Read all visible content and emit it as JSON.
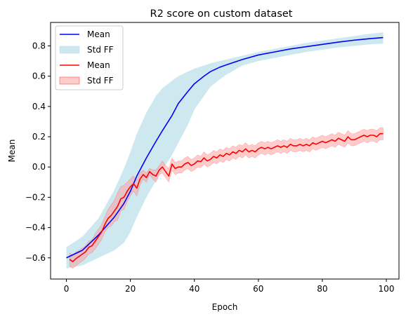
{
  "chart_data": {
    "type": "line",
    "title": "R2 score on custom dataset",
    "xlabel": "Epoch",
    "ylabel": "Mean",
    "xlim": [
      -4.95,
      103.95
    ],
    "ylim": [
      -0.74,
      0.955
    ],
    "xticks": [
      0,
      20,
      40,
      60,
      80,
      100
    ],
    "yticks": [
      -0.6,
      -0.4,
      -0.2,
      0.0,
      0.2,
      0.4,
      0.6,
      0.8
    ],
    "xtick_labels": [
      "0",
      "20",
      "40",
      "60",
      "80",
      "100"
    ],
    "ytick_labels": [
      "−0.6",
      "−0.4",
      "−0.2",
      "0.0",
      "0.2",
      "0.4",
      "0.6",
      "0.8"
    ],
    "grid": false,
    "legend_position": "top-left",
    "legend": [
      "Mean",
      "Std FF",
      "Mean",
      "Std FF"
    ],
    "series": [
      {
        "name": "Mean",
        "band_name": "Std FF",
        "color": "#0000ff",
        "band_color": "#add8e6",
        "x": [
          0,
          5,
          10,
          15,
          18,
          20,
          22,
          25,
          28,
          30,
          33,
          35,
          38,
          40,
          43,
          45,
          48,
          50,
          55,
          60,
          65,
          70,
          75,
          80,
          85,
          90,
          95,
          99
        ],
        "values": [
          -0.6,
          -0.55,
          -0.45,
          -0.33,
          -0.24,
          -0.16,
          -0.06,
          0.06,
          0.17,
          0.24,
          0.34,
          0.42,
          0.5,
          0.55,
          0.6,
          0.63,
          0.66,
          0.675,
          0.71,
          0.74,
          0.76,
          0.78,
          0.795,
          0.81,
          0.825,
          0.838,
          0.848,
          0.855
        ],
        "upper": [
          -0.53,
          -0.46,
          -0.34,
          -0.15,
          -0.01,
          0.1,
          0.22,
          0.36,
          0.47,
          0.52,
          0.57,
          0.6,
          0.63,
          0.65,
          0.67,
          0.685,
          0.7,
          0.71,
          0.735,
          0.76,
          0.78,
          0.8,
          0.82,
          0.835,
          0.85,
          0.865,
          0.88,
          0.89
        ],
        "lower": [
          -0.67,
          -0.65,
          -0.6,
          -0.55,
          -0.5,
          -0.43,
          -0.33,
          -0.2,
          -0.09,
          -0.02,
          0.08,
          0.16,
          0.28,
          0.38,
          0.47,
          0.53,
          0.58,
          0.61,
          0.67,
          0.7,
          0.72,
          0.74,
          0.76,
          0.775,
          0.79,
          0.8,
          0.81,
          0.815
        ]
      },
      {
        "name": "Mean",
        "band_name": "Std FF",
        "color": "#ff0000",
        "band_color": "#ff9a9a",
        "x": [
          1,
          2,
          3,
          4,
          5,
          6,
          7,
          8,
          9,
          10,
          11,
          12,
          13,
          14,
          15,
          16,
          17,
          18,
          19,
          20,
          21,
          22,
          23,
          24,
          25,
          26,
          27,
          28,
          29,
          30,
          31,
          32,
          33,
          34,
          35,
          36,
          37,
          38,
          39,
          40,
          41,
          42,
          43,
          44,
          45,
          46,
          47,
          48,
          49,
          50,
          51,
          52,
          53,
          54,
          55,
          56,
          57,
          58,
          59,
          60,
          61,
          62,
          63,
          64,
          65,
          66,
          67,
          68,
          69,
          70,
          71,
          72,
          73,
          74,
          75,
          76,
          77,
          78,
          79,
          80,
          81,
          82,
          83,
          84,
          85,
          86,
          87,
          88,
          89,
          90,
          91,
          92,
          93,
          94,
          95,
          96,
          97,
          98,
          99
        ],
        "values": [
          -0.61,
          -0.625,
          -0.605,
          -0.59,
          -0.575,
          -0.56,
          -0.53,
          -0.52,
          -0.49,
          -0.46,
          -0.43,
          -0.38,
          -0.34,
          -0.32,
          -0.29,
          -0.26,
          -0.21,
          -0.2,
          -0.16,
          -0.13,
          -0.11,
          -0.14,
          -0.08,
          -0.05,
          -0.07,
          -0.03,
          -0.05,
          -0.06,
          -0.02,
          0.0,
          -0.03,
          -0.06,
          0.02,
          -0.01,
          0.0,
          0.0,
          0.02,
          0.03,
          0.01,
          0.02,
          0.04,
          0.035,
          0.06,
          0.04,
          0.05,
          0.07,
          0.06,
          0.08,
          0.07,
          0.09,
          0.08,
          0.1,
          0.09,
          0.11,
          0.1,
          0.12,
          0.1,
          0.11,
          0.1,
          0.12,
          0.13,
          0.12,
          0.13,
          0.12,
          0.13,
          0.14,
          0.13,
          0.14,
          0.13,
          0.15,
          0.14,
          0.14,
          0.15,
          0.14,
          0.15,
          0.14,
          0.16,
          0.15,
          0.16,
          0.17,
          0.16,
          0.17,
          0.18,
          0.17,
          0.19,
          0.18,
          0.17,
          0.2,
          0.18,
          0.18,
          0.19,
          0.2,
          0.21,
          0.2,
          0.21,
          0.21,
          0.2,
          0.22,
          0.22
        ],
        "upper": [
          -0.57,
          -0.58,
          -0.56,
          -0.55,
          -0.535,
          -0.52,
          -0.49,
          -0.48,
          -0.44,
          -0.41,
          -0.38,
          -0.33,
          -0.28,
          -0.25,
          -0.22,
          -0.17,
          -0.13,
          -0.12,
          -0.1,
          -0.08,
          -0.06,
          -0.09,
          -0.04,
          -0.02,
          -0.04,
          -0.01,
          -0.02,
          -0.02,
          0.01,
          0.04,
          0.01,
          -0.01,
          0.06,
          0.03,
          0.04,
          0.04,
          0.06,
          0.07,
          0.05,
          0.06,
          0.08,
          0.07,
          0.1,
          0.08,
          0.09,
          0.11,
          0.1,
          0.12,
          0.11,
          0.13,
          0.12,
          0.14,
          0.13,
          0.15,
          0.14,
          0.16,
          0.14,
          0.15,
          0.14,
          0.16,
          0.17,
          0.16,
          0.17,
          0.16,
          0.17,
          0.18,
          0.17,
          0.18,
          0.17,
          0.19,
          0.18,
          0.18,
          0.19,
          0.18,
          0.19,
          0.18,
          0.2,
          0.19,
          0.2,
          0.21,
          0.2,
          0.21,
          0.22,
          0.21,
          0.23,
          0.22,
          0.21,
          0.24,
          0.22,
          0.22,
          0.23,
          0.24,
          0.25,
          0.24,
          0.25,
          0.25,
          0.24,
          0.26,
          0.26
        ],
        "lower": [
          -0.655,
          -0.67,
          -0.65,
          -0.635,
          -0.62,
          -0.6,
          -0.575,
          -0.565,
          -0.54,
          -0.51,
          -0.48,
          -0.43,
          -0.4,
          -0.39,
          -0.36,
          -0.35,
          -0.29,
          -0.28,
          -0.23,
          -0.19,
          -0.16,
          -0.19,
          -0.12,
          -0.08,
          -0.1,
          -0.05,
          -0.08,
          -0.1,
          -0.05,
          -0.04,
          -0.07,
          -0.1,
          -0.02,
          -0.05,
          -0.04,
          -0.04,
          -0.02,
          -0.01,
          -0.03,
          -0.02,
          0.0,
          -0.005,
          0.02,
          0.0,
          0.01,
          0.03,
          0.02,
          0.04,
          0.03,
          0.05,
          0.04,
          0.06,
          0.05,
          0.07,
          0.06,
          0.08,
          0.06,
          0.07,
          0.06,
          0.08,
          0.09,
          0.08,
          0.09,
          0.08,
          0.09,
          0.1,
          0.09,
          0.1,
          0.09,
          0.11,
          0.1,
          0.1,
          0.11,
          0.1,
          0.11,
          0.1,
          0.12,
          0.11,
          0.12,
          0.13,
          0.12,
          0.13,
          0.14,
          0.13,
          0.15,
          0.14,
          0.13,
          0.16,
          0.14,
          0.14,
          0.15,
          0.16,
          0.17,
          0.16,
          0.17,
          0.17,
          0.16,
          0.18,
          0.18
        ]
      }
    ]
  }
}
